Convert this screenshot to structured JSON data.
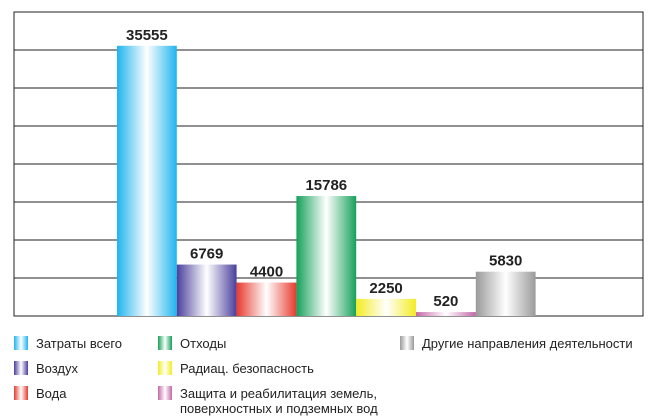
{
  "chart_data": {
    "type": "bar",
    "categories": [
      "Затраты всего",
      "Воздух",
      "Вода",
      "Отходы",
      "Радиац. безопасность",
      "Защита и реабилитация земель, поверхностных и подземных вод",
      "Другие направления деятельности"
    ],
    "values": [
      35555,
      6769,
      4400,
      15786,
      2250,
      520,
      5830
    ],
    "colors": [
      "#20b4ee",
      "#4a3f9c",
      "#e63a2e",
      "#16a05a",
      "#f3ec22",
      "#c468a8",
      "#9a9a9a"
    ],
    "ylim": [
      0,
      40000
    ],
    "yticks": [
      0,
      5000,
      10000,
      15000,
      20000,
      25000,
      30000,
      35000,
      40000
    ],
    "grid": true
  }
}
